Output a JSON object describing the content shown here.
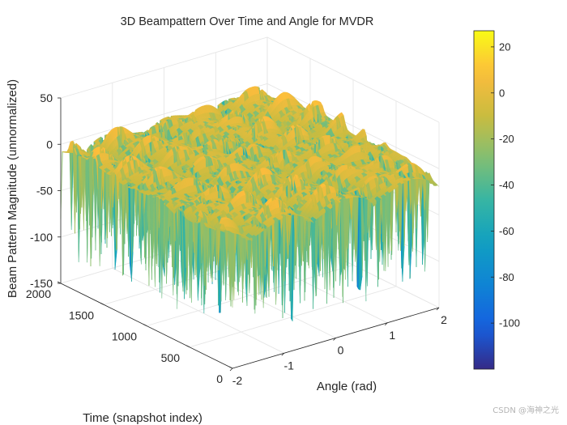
{
  "chart_data": {
    "type": "surface",
    "title": "3D Beampattern Over Time and Angle for MVDR",
    "xlabel": "Angle (rad)",
    "ylabel": "Time (snapshot index)",
    "zlabel": "Beam Pattern Magnitude (unnormalized)",
    "xlim": [
      -2,
      2
    ],
    "ylim": [
      0,
      2000
    ],
    "zlim": [
      -150,
      50
    ],
    "x_ticks": [
      -2,
      -1,
      0,
      1,
      2
    ],
    "y_ticks": [
      0,
      500,
      1000,
      1500,
      2000
    ],
    "z_ticks": [
      -150,
      -100,
      -50,
      0,
      50
    ],
    "colorbar": {
      "colormap": "parula",
      "limits": [
        -120,
        27
      ],
      "ticks": [
        -100,
        -80,
        -60,
        -40,
        -20,
        0,
        20
      ]
    },
    "grid": true,
    "approx_values": {
      "peak_level": 27,
      "mean_level": 0,
      "deep_null_level": -120,
      "ridge_period_snapshots": 250
    }
  },
  "watermark": "CSDN @海神之光"
}
